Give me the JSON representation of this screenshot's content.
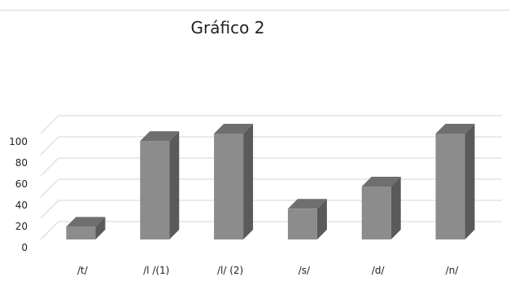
{
  "chart_data": {
    "type": "bar",
    "title": "Gráfico 2",
    "categories": [
      "/t/",
      "/l /(1)",
      "/l/ (2)",
      "/s/",
      "/d/",
      "/n/"
    ],
    "values": [
      12,
      93,
      100,
      29,
      50,
      100
    ],
    "ylim": [
      0,
      100
    ],
    "yticks": [
      0,
      20,
      40,
      60,
      80,
      100
    ],
    "grid": true,
    "three_d": true,
    "colors": {
      "bar_front": "#8c8c8c",
      "bar_top": "#6f6f6f",
      "bar_side": "#5a5a5a",
      "grid": "#d6d6d6"
    }
  }
}
